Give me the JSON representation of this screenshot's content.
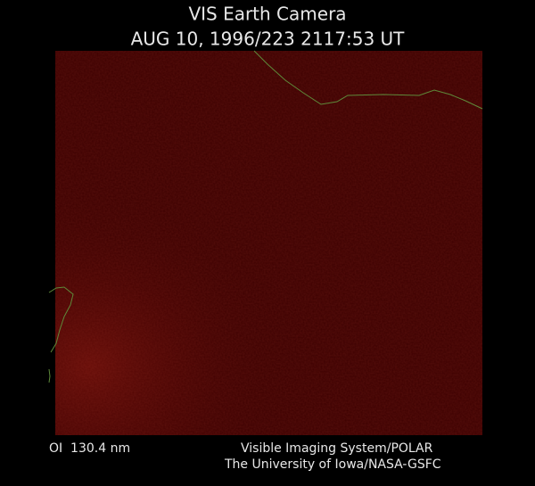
{
  "header": {
    "title": "VIS Earth Camera",
    "timestamp": "AUG 10, 1996/223 2117:53 UT"
  },
  "footer": {
    "filter": "OI  130.4 nm",
    "instrument": "Visible Imaging System/POLAR",
    "institution": "The University of Iowa/NASA-GSFC"
  }
}
